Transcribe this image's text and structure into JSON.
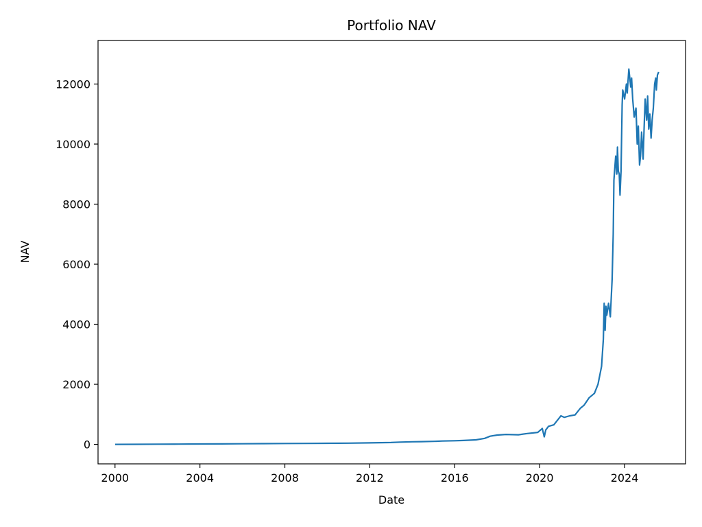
{
  "chart_data": {
    "type": "line",
    "title": "Portfolio NAV",
    "xlabel": "Date",
    "ylabel": "NAV",
    "x_is_date": true,
    "xlim": [
      "1999-03-15",
      "2026-11-15"
    ],
    "ylim": [
      -650,
      13450
    ],
    "x_ticks": [
      "2000-01-01",
      "2004-01-01",
      "2008-01-01",
      "2012-01-01",
      "2016-01-01",
      "2020-01-01",
      "2024-01-01"
    ],
    "x_tick_labels": [
      "2000",
      "2004",
      "2008",
      "2012",
      "2016",
      "2020",
      "2024"
    ],
    "y_ticks": [
      0,
      2000,
      4000,
      6000,
      8000,
      10000,
      12000
    ],
    "y_tick_labels": [
      "0",
      "2000",
      "4000",
      "6000",
      "8000",
      "10000",
      "12000"
    ],
    "grid": false,
    "legend": "none",
    "series": [
      {
        "color": "#1f77b4",
        "x": [
          "2000-01-03",
          "2001-01-01",
          "2002-01-01",
          "2003-01-01",
          "2004-01-01",
          "2005-01-01",
          "2006-01-01",
          "2007-01-01",
          "2008-01-01",
          "2009-01-01",
          "2010-01-01",
          "2011-01-01",
          "2012-01-01",
          "2013-01-01",
          "2013-06-01",
          "2014-01-01",
          "2014-06-01",
          "2015-01-01",
          "2015-06-01",
          "2016-01-01",
          "2016-06-01",
          "2017-01-01",
          "2017-06-01",
          "2017-09-01",
          "2018-01-01",
          "2018-06-01",
          "2019-01-01",
          "2019-06-01",
          "2019-12-01",
          "2020-02-15",
          "2020-03-20",
          "2020-04-15",
          "2020-06-01",
          "2020-09-01",
          "2021-01-01",
          "2021-03-01",
          "2021-06-01",
          "2021-09-01",
          "2021-12-01",
          "2022-02-01",
          "2022-05-01",
          "2022-08-01",
          "2022-10-01",
          "2022-12-01",
          "2023-01-01",
          "2023-01-15",
          "2023-02-01",
          "2023-02-15",
          "2023-03-01",
          "2023-04-01",
          "2023-05-01",
          "2023-06-01",
          "2023-06-20",
          "2023-07-01",
          "2023-08-01",
          "2023-08-20",
          "2023-09-01",
          "2023-09-15",
          "2023-10-01",
          "2023-10-15",
          "2023-11-01",
          "2023-11-20",
          "2023-12-01",
          "2024-01-01",
          "2024-02-01",
          "2024-02-15",
          "2024-03-15",
          "2024-04-15",
          "2024-05-01",
          "2024-05-20",
          "2024-06-15",
          "2024-07-15",
          "2024-08-05",
          "2024-08-25",
          "2024-09-15",
          "2024-10-01",
          "2024-10-20",
          "2024-11-15",
          "2024-12-01",
          "2024-12-20",
          "2025-01-15",
          "2025-02-01",
          "2025-02-20",
          "2025-03-10",
          "2025-04-01",
          "2025-04-20",
          "2025-05-10",
          "2025-06-01",
          "2025-06-20",
          "2025-07-01",
          "2025-07-20",
          "2025-08-10"
        ],
        "y": [
          0,
          2,
          5,
          8,
          12,
          16,
          20,
          25,
          28,
          30,
          35,
          40,
          50,
          60,
          75,
          85,
          90,
          100,
          110,
          120,
          130,
          150,
          200,
          270,
          310,
          330,
          320,
          360,
          400,
          530,
          250,
          480,
          600,
          650,
          950,
          900,
          950,
          980,
          1200,
          1300,
          1550,
          1700,
          2000,
          2600,
          3500,
          4700,
          3800,
          4600,
          4300,
          4700,
          4250,
          5500,
          7000,
          8800,
          9600,
          9000,
          9900,
          9100,
          9000,
          8300,
          9100,
          11300,
          11800,
          11500,
          12000,
          11700,
          12500,
          11900,
          12200,
          11500,
          10900,
          11200,
          10000,
          10600,
          9300,
          9600,
          10400,
          9500,
          10500,
          11500,
          10800,
          11600,
          10500,
          11000,
          10200,
          10800,
          11200,
          12000,
          12200,
          11800,
          12300,
          12400
        ]
      }
    ]
  }
}
